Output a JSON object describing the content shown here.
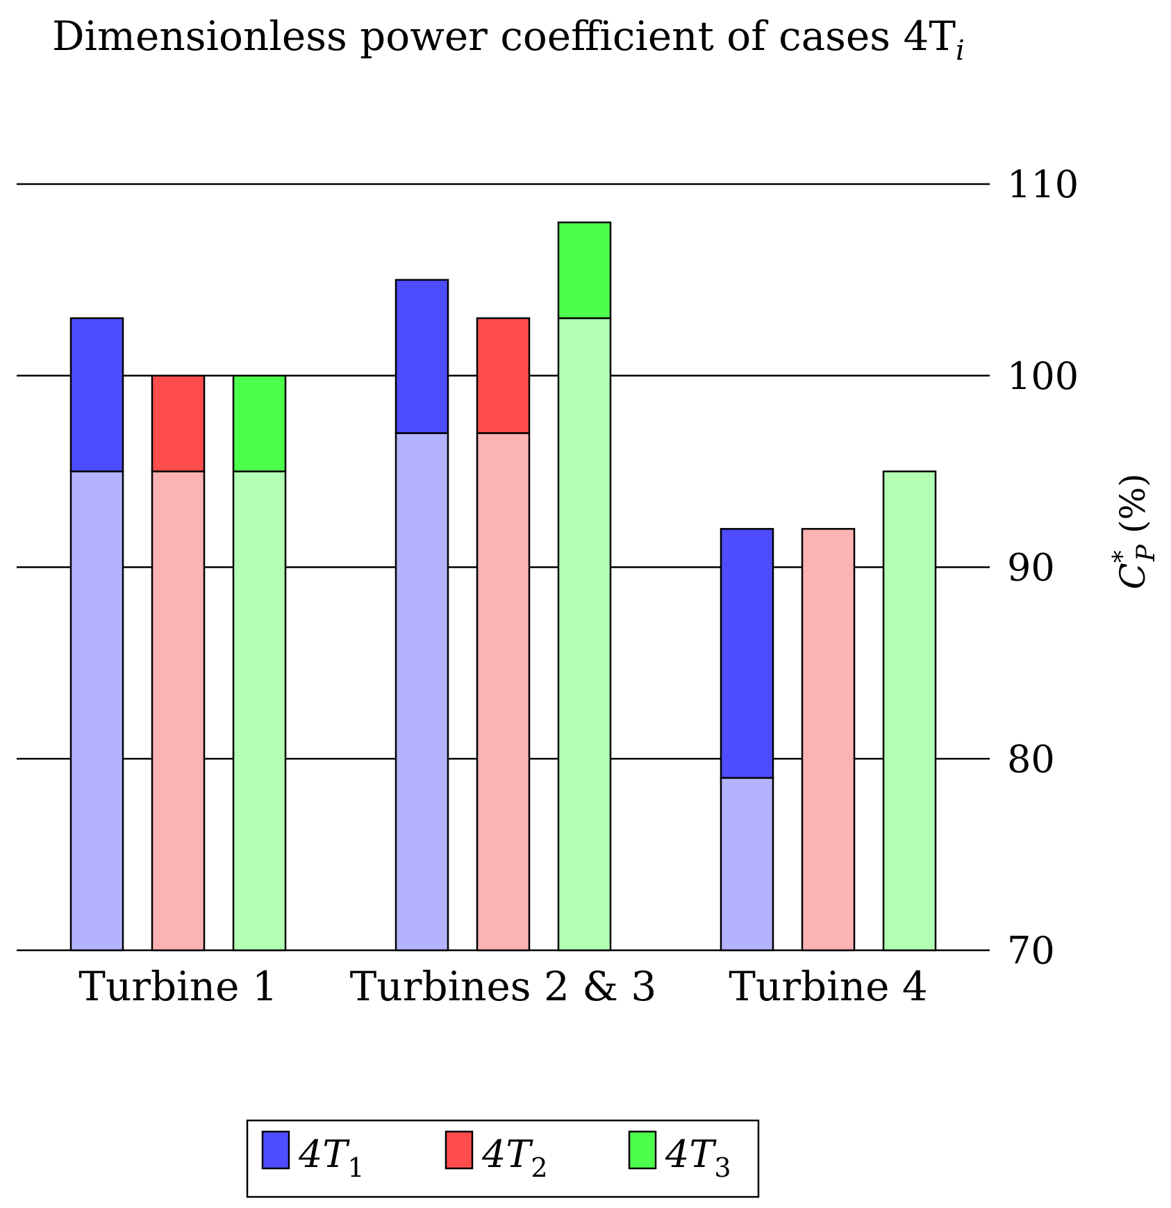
{
  "chart_data": {
    "type": "bar",
    "title": "Dimensionless power coefficient of cases 4T",
    "title_subscript": "i",
    "ylabel": "C",
    "ylabel_superscript": "*",
    "ylabel_subscript": "P",
    "ylabel_suffix": " (%)",
    "ylim": [
      70,
      110
    ],
    "yticks": [
      70,
      80,
      90,
      100,
      110
    ],
    "ytick_labels": [
      "70",
      "80",
      "90",
      "100",
      "110"
    ],
    "y_axis_side": "right",
    "grid": "horizontal at each tick",
    "legend_position": "bottom",
    "categories": [
      "Turbine 1",
      "Turbines 2 & 3",
      "Turbine 4"
    ],
    "series": [
      {
        "name": "4T",
        "name_subscript": "1",
        "color": "#4d4dff",
        "light_color": "#b3b3ff",
        "base_values": [
          95,
          97,
          79
        ],
        "values": [
          103,
          105,
          92
        ]
      },
      {
        "name": "4T",
        "name_subscript": "2",
        "color": "#ff4d4d",
        "light_color": "#fbb3b3",
        "base_values": [
          95,
          97,
          92
        ],
        "values": [
          100,
          103,
          92
        ]
      },
      {
        "name": "4T",
        "name_subscript": "3",
        "color": "#4dff4d",
        "light_color": "#b3ffb3",
        "base_values": [
          95,
          103,
          95
        ],
        "values": [
          100,
          108,
          95
        ]
      }
    ]
  }
}
